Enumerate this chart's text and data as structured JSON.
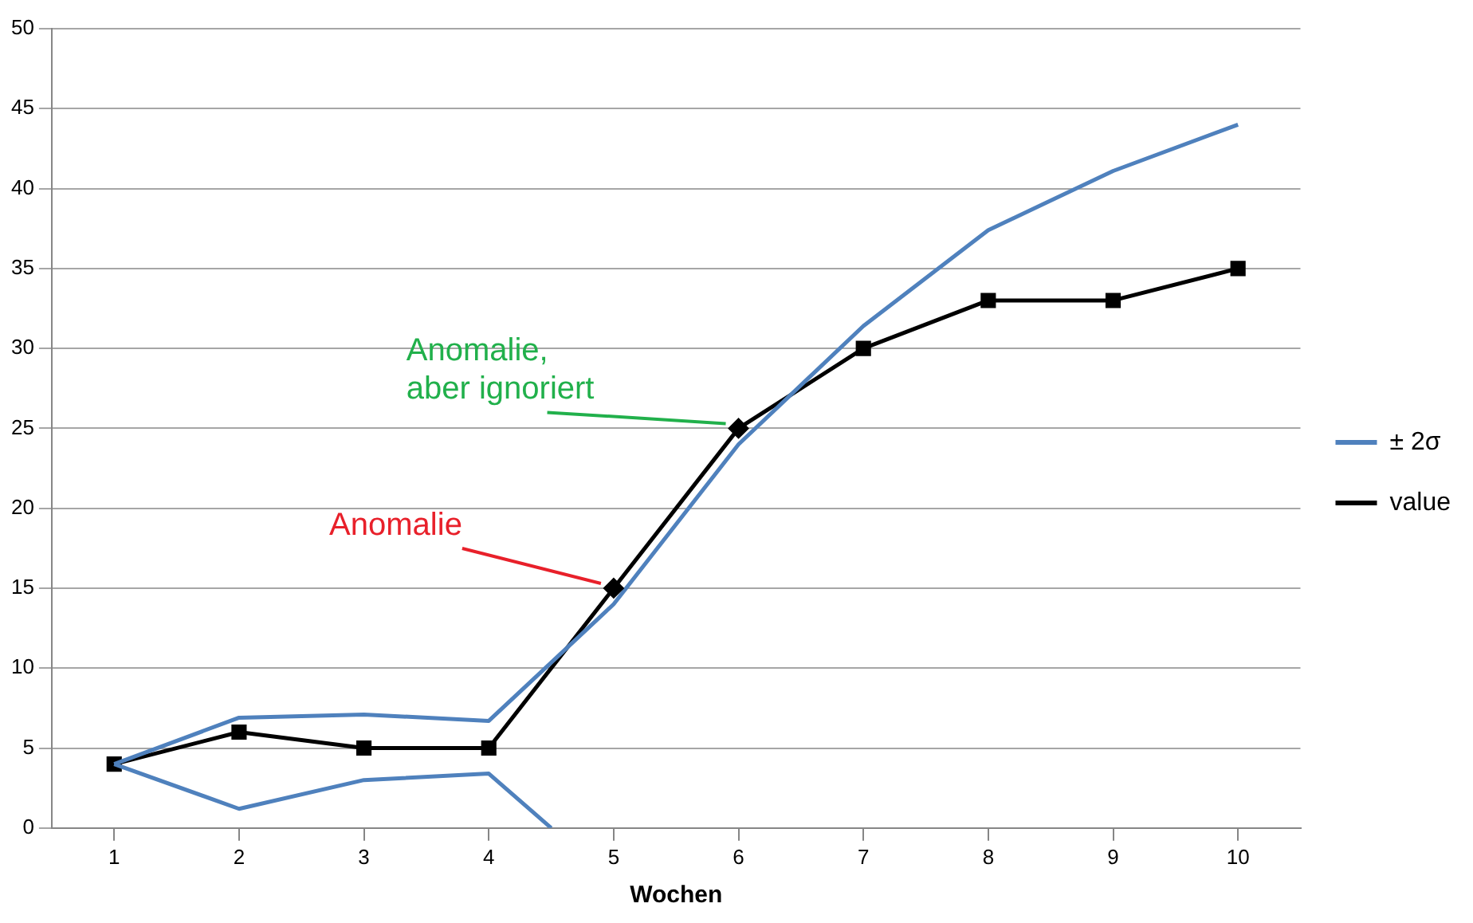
{
  "chart_data": {
    "type": "line",
    "xlabel": "Wochen",
    "xlim": [
      0.5,
      10.5
    ],
    "xticks": [
      1,
      2,
      3,
      4,
      5,
      6,
      7,
      8,
      9,
      10
    ],
    "ylim": [
      0,
      50
    ],
    "yticks": [
      0,
      5,
      10,
      15,
      20,
      25,
      30,
      35,
      40,
      45,
      50
    ],
    "grid": "y",
    "legend": "right",
    "x": [
      1,
      2,
      3,
      4,
      5,
      6,
      7,
      8,
      9,
      10
    ],
    "series": [
      {
        "name": "± 2σ",
        "color": "#4f81bd",
        "marker": "none",
        "values": [
          4,
          6.9,
          7.1,
          6.7,
          14,
          24,
          31.4,
          37.4,
          41.1,
          44
        ]
      },
      {
        "color": "#4f81bd",
        "marker": "none",
        "x": [
          1,
          2,
          3,
          4,
          4.5
        ],
        "values": [
          4,
          1.2,
          3,
          3.4,
          0
        ]
      },
      {
        "name": "value",
        "color": "#000000",
        "marker": "square",
        "values": [
          4,
          6,
          5,
          5,
          15,
          25,
          30,
          33,
          33,
          35
        ]
      },
      {
        "type": "scatter",
        "color": "#000000",
        "marker": "diamond",
        "x": [
          5,
          6
        ],
        "values": [
          15,
          25
        ]
      }
    ],
    "annotations": [
      {
        "text": "Anomalie",
        "x": 5,
        "y": 15
      },
      {
        "text": "Anomalie,\naber ignoriert",
        "x": 6,
        "y": 25
      }
    ]
  }
}
